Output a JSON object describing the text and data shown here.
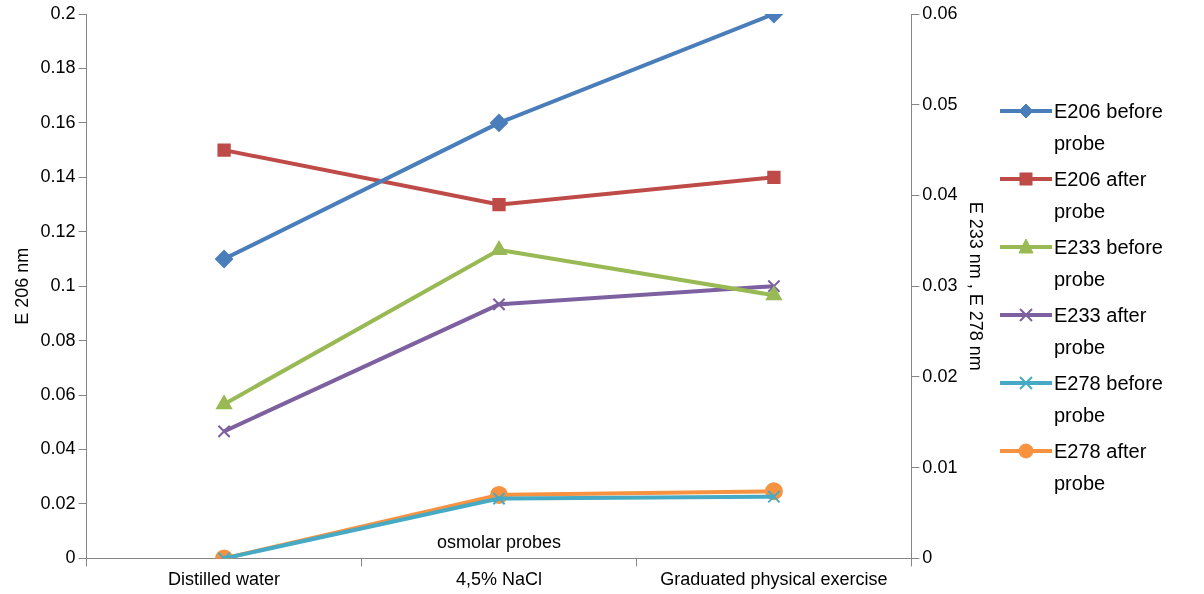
{
  "chart_data": {
    "type": "line",
    "xlabel": "osmolar probes",
    "ylabel": "E 206 nm",
    "y2label": "E 233 nm , E 278 nm",
    "categories": [
      "Distilled water",
      "4,5% NaCl",
      "Graduated physical exercise"
    ],
    "series": [
      {
        "name": "E206 before probe",
        "color": "#4a7ebb",
        "marker": "diamond",
        "values": [
          0.11,
          0.16,
          0.2
        ]
      },
      {
        "name": "E206 after probe",
        "color": "#be4b48",
        "marker": "square",
        "values": [
          0.15,
          0.13,
          0.14
        ]
      },
      {
        "name": "E233 before probe",
        "color": "#98b954",
        "marker": "triangle",
        "axis": "y2",
        "values": [
          0.017,
          0.034,
          0.029
        ]
      },
      {
        "name": "E233 after probe",
        "color": "#7d60a0",
        "marker": "cross",
        "axis": "y2",
        "values": [
          0.014,
          0.028,
          0.03
        ]
      },
      {
        "name": "E278 before probe",
        "color": "#46aac5",
        "marker": "cross",
        "axis": "y2",
        "values": [
          0,
          0.0066,
          0.0068
        ]
      },
      {
        "name": "E278 after probe",
        "color": "#f69240",
        "marker": "circle",
        "axis": "y2",
        "values": [
          0,
          0.007,
          0.0074
        ]
      }
    ],
    "ylim": [
      0,
      0.2
    ],
    "yticks": [
      0,
      0.02,
      0.04,
      0.06,
      0.08,
      0.1,
      0.12,
      0.14,
      0.16,
      0.18,
      0.2
    ],
    "y2lim": [
      0,
      0.06
    ],
    "y2ticks": [
      0,
      0.01,
      0.02,
      0.03,
      0.04,
      0.05,
      0.06
    ],
    "grid": false,
    "legend": "right",
    "line_style": "solid"
  }
}
